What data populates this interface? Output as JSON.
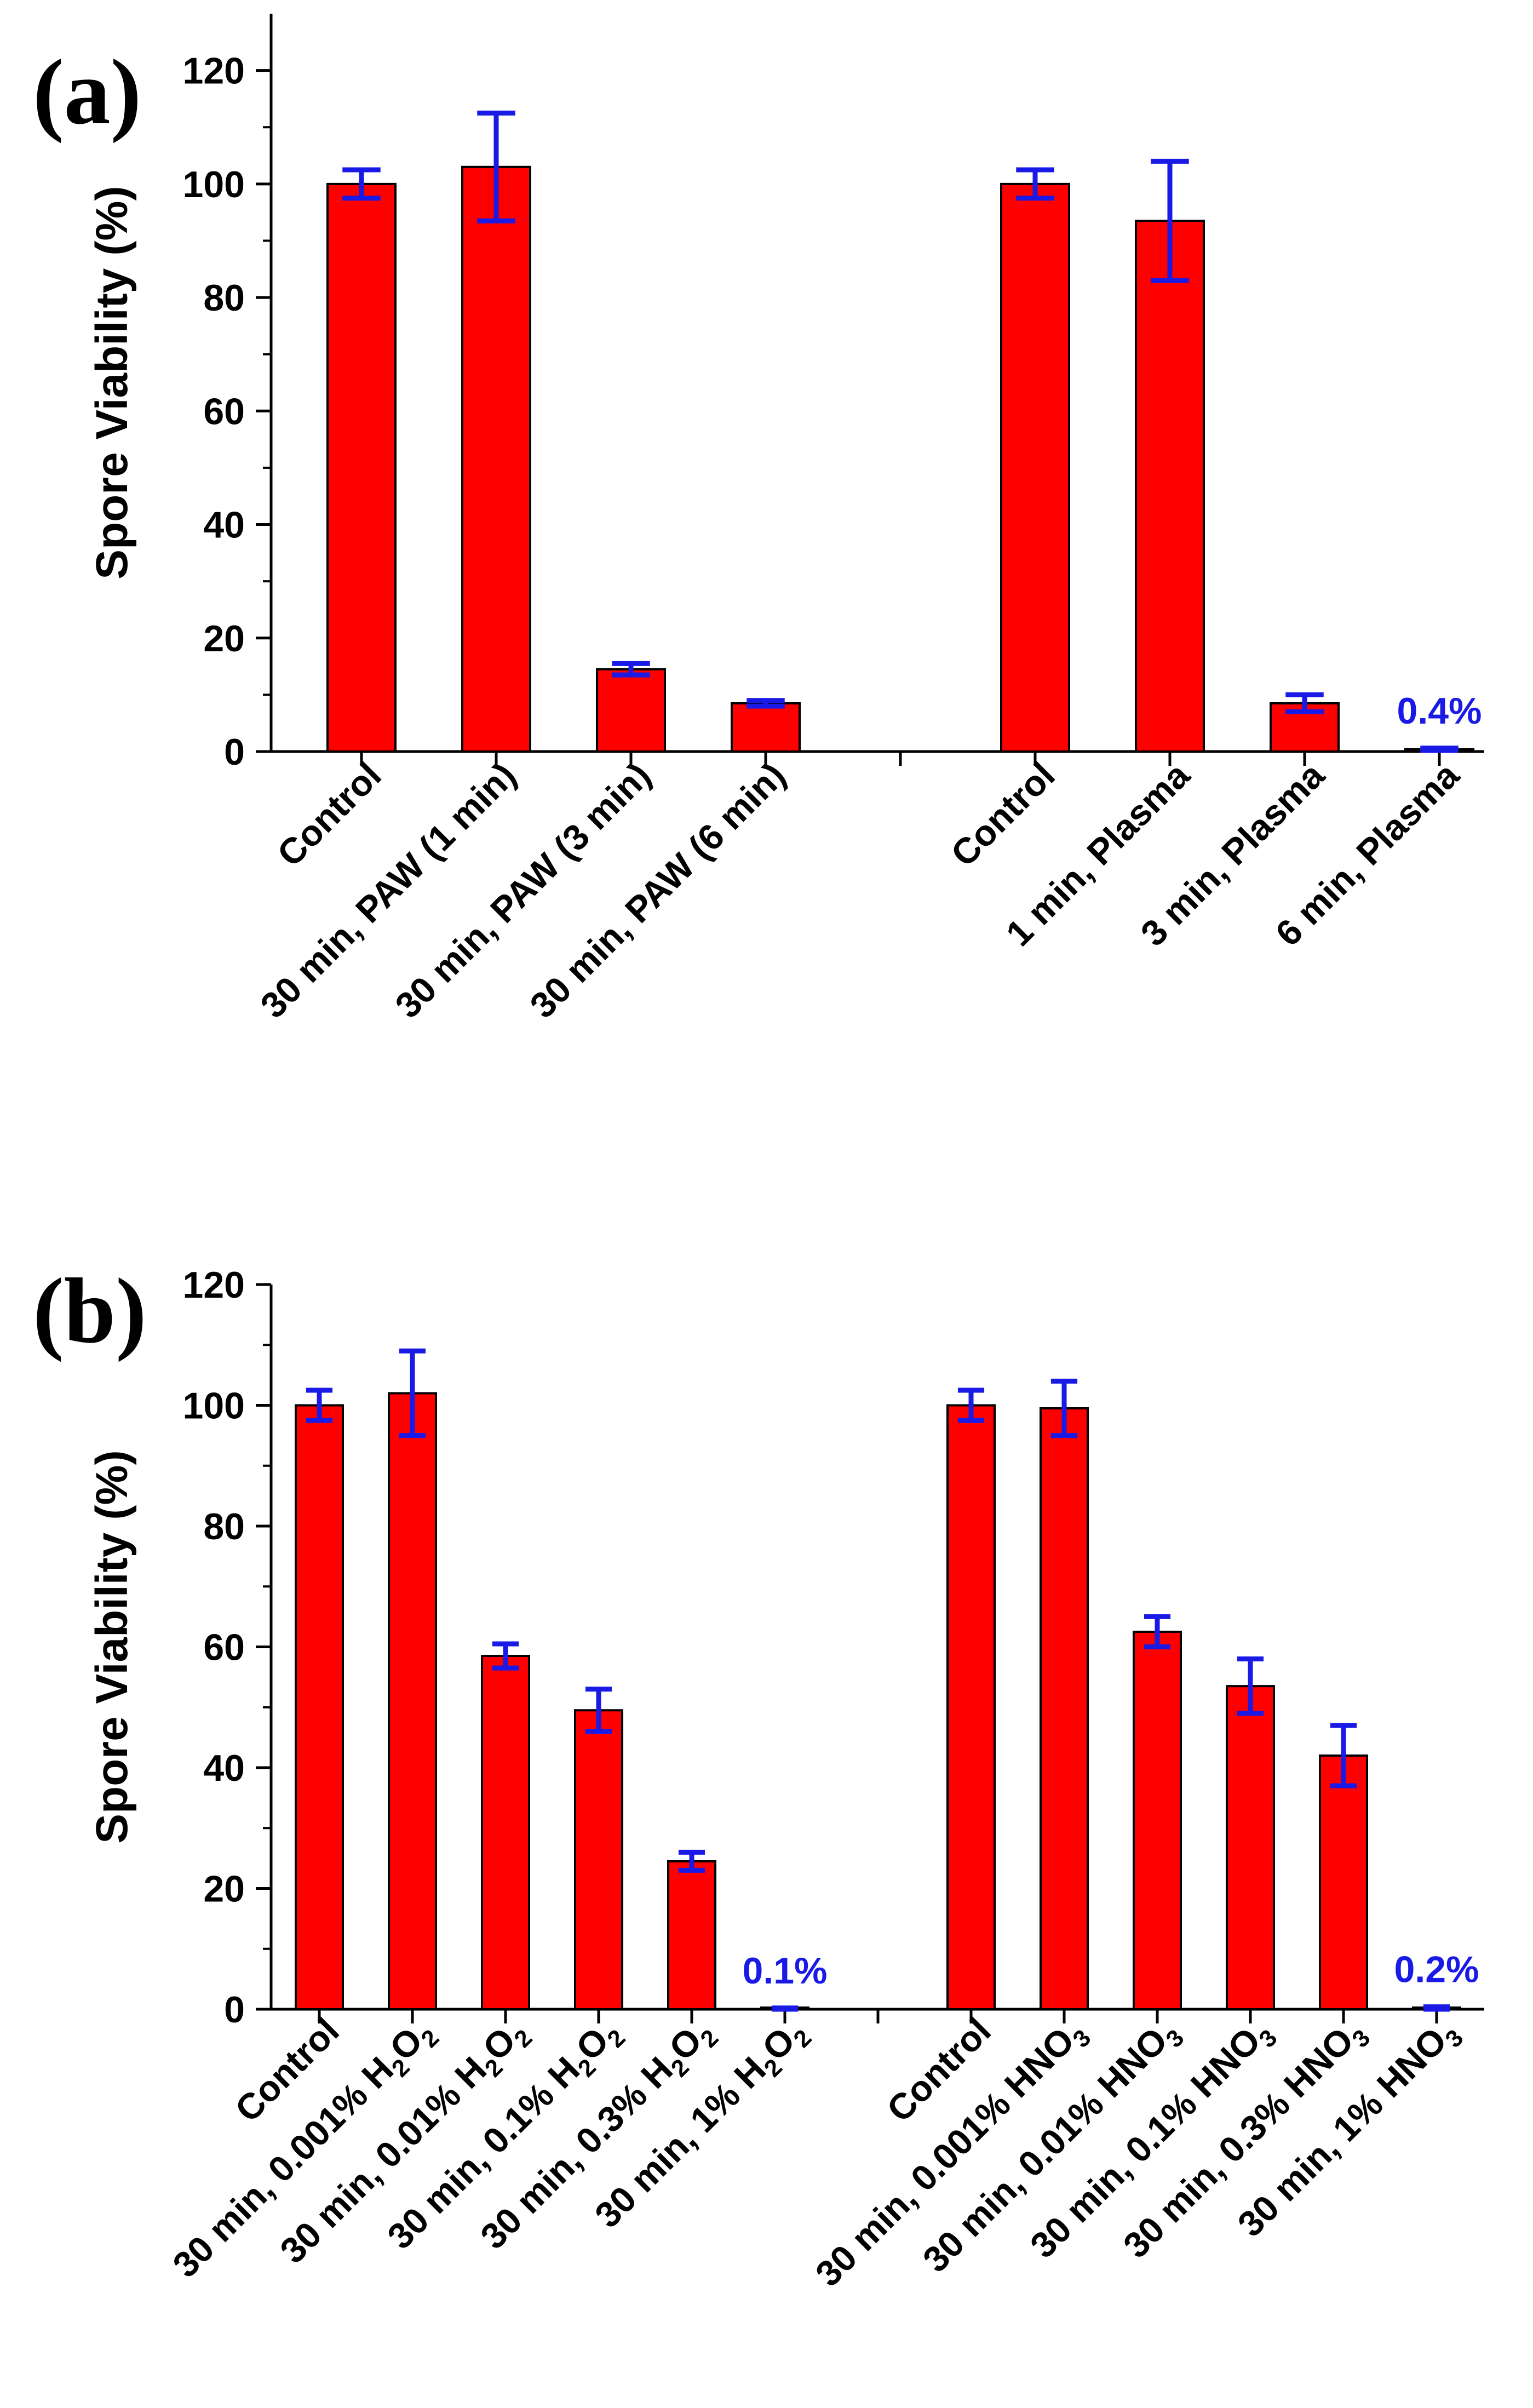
{
  "colors": {
    "bar_fill": "#ff0000",
    "bar_stroke": "#000000",
    "error_bar": "#1a1ae6",
    "annotation": "#1a1ae6",
    "axis": "#000000",
    "text": "#000000"
  },
  "chart_data": [
    {
      "type": "bar",
      "panel_label": "(a)",
      "ylabel": "Spore Viability (%)",
      "xlabel": "",
      "ylim": [
        0,
        130
      ],
      "yticks": [
        "0",
        "20",
        "40",
        "60",
        "80",
        "100",
        "120"
      ],
      "grid": false,
      "categories": [
        "Control",
        "30 min, PAW (1 min)",
        "30 min, PAW (3 min)",
        "30 min, PAW (6 min)",
        "Control",
        "1 min, Plasma",
        "3 min, Plasma",
        "6 min, Plasma"
      ],
      "label_parts": [
        [
          {
            "t": "Control"
          }
        ],
        [
          {
            "t": "30 min, PAW (1 min)"
          }
        ],
        [
          {
            "t": "30 min, PAW (3 min)"
          }
        ],
        [
          {
            "t": "30 min, PAW (6 min)"
          }
        ],
        [
          {
            "t": "Control"
          }
        ],
        [
          {
            "t": "1 min, Plasma"
          }
        ],
        [
          {
            "t": "3 min, Plasma"
          }
        ],
        [
          {
            "t": "6 min, Plasma"
          }
        ]
      ],
      "slots": [
        0,
        1,
        2,
        3,
        5,
        6,
        7,
        8
      ],
      "slot_count": 9,
      "values": [
        100,
        103,
        14.5,
        8.5,
        100,
        93.5,
        8.5,
        0.4
      ],
      "errors": [
        2.5,
        9.5,
        1.0,
        0.5,
        2.5,
        10.5,
        1.5,
        0.2
      ],
      "annotations": [
        {
          "index": 7,
          "text": "0.4%"
        }
      ]
    },
    {
      "type": "bar",
      "panel_label": "(b)",
      "ylabel": "Spore Viability (%)",
      "xlabel": "",
      "ylim": [
        0,
        120
      ],
      "yticks": [
        "0",
        "20",
        "40",
        "60",
        "80",
        "100",
        "120"
      ],
      "grid": false,
      "categories": [
        "Control",
        "30 min, 0.001% H2O2",
        "30 min, 0.01% H2O2",
        "30 min, 0.1% H2O2",
        "30 min, 0.3% H2O2",
        "30 min, 1% H2O2",
        "Control",
        "30 min, 0.001% HNO3",
        "30 min, 0.01% HNO3",
        "30 min, 0.1% HNO3",
        "30 min, 0.3% HNO3",
        "30 min, 1% HNO3"
      ],
      "label_parts": [
        [
          {
            "t": "Control"
          }
        ],
        [
          {
            "t": "30 min, 0.001% H"
          },
          {
            "t": "2",
            "s": 1
          },
          {
            "t": "O"
          },
          {
            "t": "2",
            "s": 1
          }
        ],
        [
          {
            "t": "30 min, 0.01% H"
          },
          {
            "t": "2",
            "s": 1
          },
          {
            "t": "O"
          },
          {
            "t": "2",
            "s": 1
          }
        ],
        [
          {
            "t": "30 min, 0.1% H"
          },
          {
            "t": "2",
            "s": 1
          },
          {
            "t": "O"
          },
          {
            "t": "2",
            "s": 1
          }
        ],
        [
          {
            "t": "30 min, 0.3% H"
          },
          {
            "t": "2",
            "s": 1
          },
          {
            "t": "O"
          },
          {
            "t": "2",
            "s": 1
          }
        ],
        [
          {
            "t": "30 min, 1% H"
          },
          {
            "t": "2",
            "s": 1
          },
          {
            "t": "O"
          },
          {
            "t": "2",
            "s": 1
          }
        ],
        [
          {
            "t": "Control"
          }
        ],
        [
          {
            "t": "30 min, 0.001% HNO"
          },
          {
            "t": "3",
            "s": 1
          }
        ],
        [
          {
            "t": "30 min, 0.01% HNO"
          },
          {
            "t": "3",
            "s": 1
          }
        ],
        [
          {
            "t": "30 min, 0.1% HNO"
          },
          {
            "t": "3",
            "s": 1
          }
        ],
        [
          {
            "t": "30 min, 0.3% HNO"
          },
          {
            "t": "3",
            "s": 1
          }
        ],
        [
          {
            "t": "30 min, 1% HNO"
          },
          {
            "t": "3",
            "s": 1
          }
        ]
      ],
      "slots": [
        0,
        1,
        2,
        3,
        4,
        5,
        7,
        8,
        9,
        10,
        11,
        12
      ],
      "slot_count": 13,
      "values": [
        100,
        102,
        58.5,
        49.5,
        24.5,
        0.1,
        100,
        99.5,
        62.5,
        53.5,
        42,
        0.2
      ],
      "errors": [
        2.5,
        7.0,
        2.0,
        3.5,
        1.5,
        0.1,
        2.5,
        4.5,
        2.5,
        4.5,
        5.0,
        0.2
      ],
      "annotations": [
        {
          "index": 5,
          "text": "0.1%"
        },
        {
          "index": 11,
          "text": "0.2%"
        }
      ]
    }
  ]
}
